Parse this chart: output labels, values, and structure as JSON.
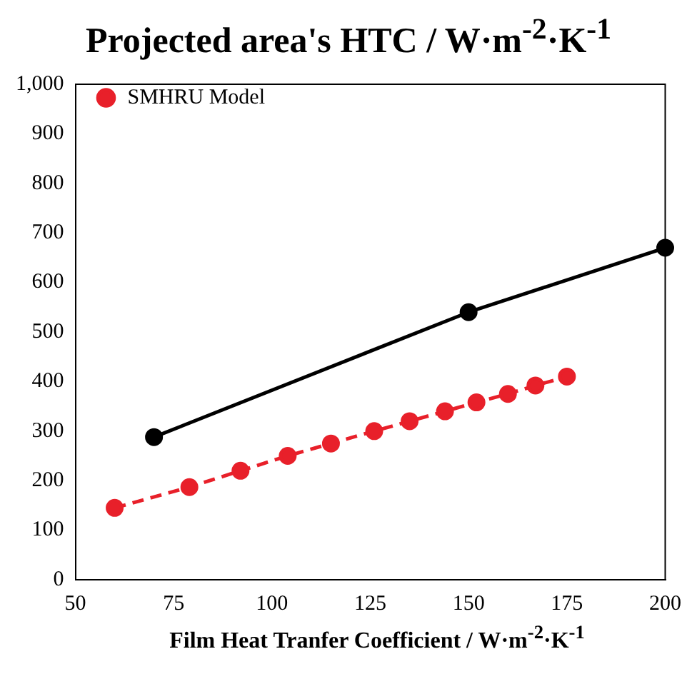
{
  "chart_data": {
    "type": "line",
    "title": "Projected area's HTC / W·m$^{-2}$·K$^{-1}$",
    "xlabel": "Film Heat Tranfer Coefficient / W·m$^{-2}$·K$^{-1}$",
    "xlim": [
      50,
      200
    ],
    "xticks": [
      50,
      75,
      100,
      125,
      150,
      175,
      200
    ],
    "ylim": [
      0,
      1000
    ],
    "yticks": [
      0,
      100,
      200,
      300,
      400,
      500,
      600,
      700,
      800,
      900,
      {
        "value": 1000,
        "label": "1,000"
      }
    ],
    "grid": false,
    "legend": "top left",
    "marker": "circle",
    "series": [
      {
        "color": "#000000",
        "line_style": "solid",
        "x": [
          70,
          150,
          200
        ],
        "values": [
          288,
          540,
          670
        ]
      },
      {
        "name": "SMHRU Model",
        "color": "#e8202a",
        "line_style": "dashed",
        "x": [
          60,
          79,
          92,
          104,
          115,
          126,
          135,
          144,
          152,
          160,
          167,
          175
        ],
        "values": [
          145,
          187,
          220,
          250,
          275,
          300,
          320,
          340,
          358,
          375,
          392,
          410
        ]
      }
    ]
  }
}
